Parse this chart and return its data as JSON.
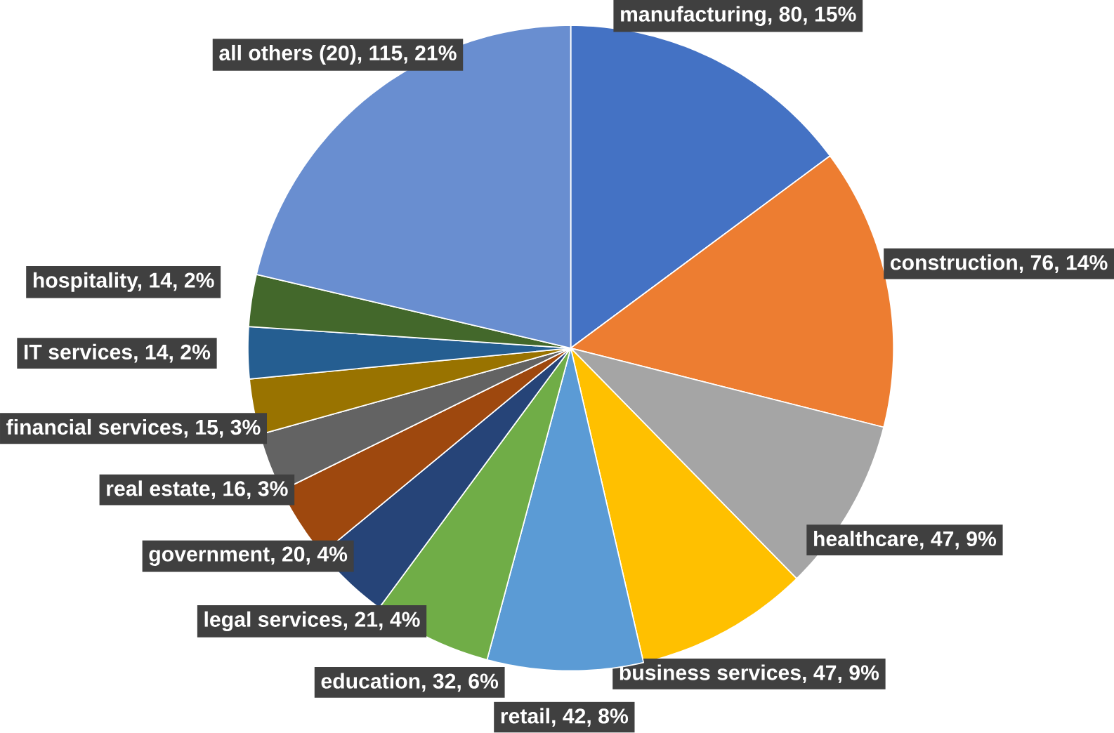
{
  "chart_data": {
    "type": "pie",
    "categories": [
      "manufacturing, 80, 15%",
      "construction, 76, 14%",
      "healthcare, 47, 9%",
      "business services, 47, 9%",
      "retail, 42, 8%",
      "education, 32, 6%",
      "legal services, 21, 4%",
      "government, 20, 4%",
      "real estate, 16, 3%",
      "financial services, 15, 3%",
      "IT services, 14, 2%",
      "hospitality, 14, 2%",
      "all others (20), 115, 21%"
    ],
    "values": [
      80,
      76,
      47,
      47,
      42,
      32,
      21,
      20,
      16,
      15,
      14,
      14,
      115
    ],
    "colors": [
      "#4472c4",
      "#ed7d31",
      "#a5a5a5",
      "#ffc000",
      "#5b9bd5",
      "#70ad47",
      "#264478",
      "#9e480e",
      "#636363",
      "#997300",
      "#255e91",
      "#43682b",
      "#698ed0"
    ]
  }
}
